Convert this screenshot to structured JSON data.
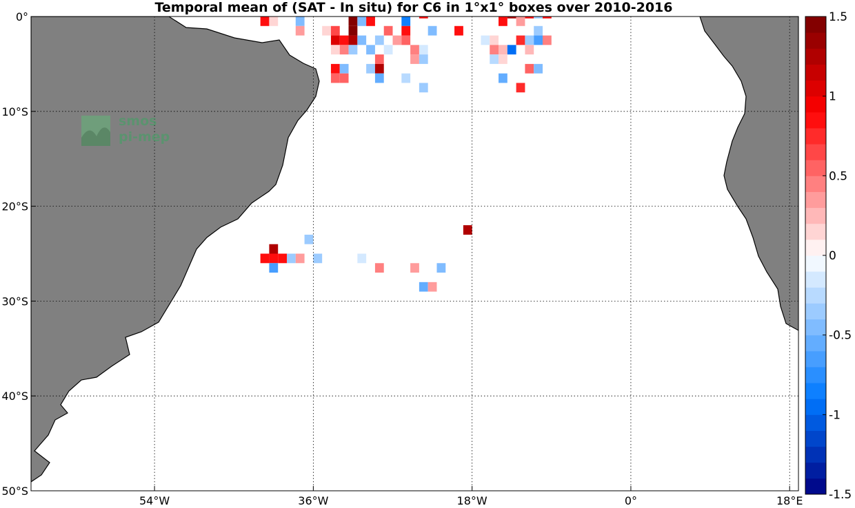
{
  "title": "Temporal mean of (SAT - In situ) for C6 in 1°x1° boxes over 2010-2016",
  "logo": {
    "line1": "smos",
    "line2": "pi-mep",
    "color": "#4f9a6a"
  },
  "colors": {
    "land": "#808080",
    "grid": "#000000",
    "background": "#ffffff"
  },
  "chart_data": {
    "type": "heatmap",
    "projection": "equirectangular",
    "lon_range": [
      -68,
      19
    ],
    "lat_range": [
      -50,
      0
    ],
    "grid": true,
    "x_ticks": [
      {
        "value": -54,
        "label": "54°W"
      },
      {
        "value": -36,
        "label": "36°W"
      },
      {
        "value": -18,
        "label": "18°W"
      },
      {
        "value": 0,
        "label": "0°"
      },
      {
        "value": 18,
        "label": "18°E"
      }
    ],
    "y_ticks": [
      {
        "value": 0,
        "label": "0°"
      },
      {
        "value": -10,
        "label": "10°S"
      },
      {
        "value": -20,
        "label": "20°S"
      },
      {
        "value": -30,
        "label": "30°S"
      },
      {
        "value": -40,
        "label": "40°S"
      },
      {
        "value": -50,
        "label": "50°S"
      }
    ],
    "colorbar": {
      "range": [
        -1.5,
        1.5
      ],
      "levels": 30,
      "ticks": [
        {
          "value": 1.5,
          "label": "1.5"
        },
        {
          "value": 1,
          "label": "1"
        },
        {
          "value": 0.5,
          "label": "0.5"
        },
        {
          "value": 0,
          "label": "0"
        },
        {
          "value": -0.5,
          "label": "-0.5"
        },
        {
          "value": -1,
          "label": "-1"
        },
        {
          "value": -1.5,
          "label": "-1.5"
        }
      ]
    },
    "cells": [
      {
        "lon": -18.5,
        "lat": -22.5,
        "value": 1.3
      },
      {
        "lon": -40.5,
        "lat": -24.5,
        "value": 1.3
      },
      {
        "lon": -41.5,
        "lat": -25.5,
        "value": 0.8
      },
      {
        "lon": -40.5,
        "lat": -25.5,
        "value": 0.9
      },
      {
        "lon": -39.5,
        "lat": -25.5,
        "value": 0.8
      },
      {
        "lon": -40.5,
        "lat": -26.5,
        "value": -0.7
      },
      {
        "lon": -36.5,
        "lat": -23.5,
        "value": -0.3
      },
      {
        "lon": -38.5,
        "lat": -25.5,
        "value": -0.4
      },
      {
        "lon": -37.5,
        "lat": -25.5,
        "value": 0.3
      },
      {
        "lon": -35.5,
        "lat": -25.5,
        "value": -0.4
      },
      {
        "lon": -30.5,
        "lat": -25.5,
        "value": -0.1
      },
      {
        "lon": -28.5,
        "lat": -26.5,
        "value": 0.45
      },
      {
        "lon": -24.5,
        "lat": -26.5,
        "value": 0.3
      },
      {
        "lon": -21.5,
        "lat": -26.5,
        "value": -0.5
      },
      {
        "lon": -23.5,
        "lat": -28.5,
        "value": -0.6
      },
      {
        "lon": -22.5,
        "lat": -28.5,
        "value": 0.3
      },
      {
        "lon": -41.5,
        "lat": -0.5,
        "value": 0.8
      },
      {
        "lon": -40.5,
        "lat": -0.5,
        "value": 0.15
      },
      {
        "lon": -37.5,
        "lat": -0.5,
        "value": -0.45
      },
      {
        "lon": -37.5,
        "lat": -1.5,
        "value": 0.3
      },
      {
        "lon": -34.5,
        "lat": -1.5,
        "value": 0.15
      },
      {
        "lon": -33.5,
        "lat": -1.5,
        "value": 0.65
      },
      {
        "lon": -31.5,
        "lat": -0.5,
        "value": 1.4
      },
      {
        "lon": -31.5,
        "lat": -1.5,
        "value": 1.4
      },
      {
        "lon": -30.5,
        "lat": -0.5,
        "value": -0.5
      },
      {
        "lon": -29.5,
        "lat": 0.3,
        "value": -0.7
      },
      {
        "lon": -29.5,
        "lat": -0.5,
        "value": 0.9
      },
      {
        "lon": -27.5,
        "lat": -1.5,
        "value": 0.55
      },
      {
        "lon": -25.5,
        "lat": -0.5,
        "value": -0.8
      },
      {
        "lon": -25.5,
        "lat": -1.5,
        "value": 0.9
      },
      {
        "lon": -23.5,
        "lat": 0.3,
        "value": 0.85
      },
      {
        "lon": -22.5,
        "lat": -1.5,
        "value": -0.45
      },
      {
        "lon": -19.5,
        "lat": -1.5,
        "value": 0.8
      },
      {
        "lon": -33.5,
        "lat": -2.5,
        "value": 1.0
      },
      {
        "lon": -32.5,
        "lat": -2.5,
        "value": 0.9
      },
      {
        "lon": -31.5,
        "lat": -2.5,
        "value": 1.2
      },
      {
        "lon": -30.5,
        "lat": -2.5,
        "value": -0.5
      },
      {
        "lon": -33.5,
        "lat": -3.5,
        "value": 0.15
      },
      {
        "lon": -32.5,
        "lat": -3.5,
        "value": 0.45
      },
      {
        "lon": -31.5,
        "lat": -3.5,
        "value": -0.3
      },
      {
        "lon": -28.5,
        "lat": -2.5,
        "value": -0.35
      },
      {
        "lon": -29.5,
        "lat": -3.5,
        "value": -0.45
      },
      {
        "lon": -26.5,
        "lat": -2.5,
        "value": 0.3
      },
      {
        "lon": -25.5,
        "lat": -2.5,
        "value": 0.55
      },
      {
        "lon": -28.5,
        "lat": -4.5,
        "value": 0.55
      },
      {
        "lon": -24.5,
        "lat": -4.5,
        "value": 0.3
      },
      {
        "lon": -23.5,
        "lat": -3.5,
        "value": -0.1
      },
      {
        "lon": -23.5,
        "lat": -4.5,
        "value": -0.3
      },
      {
        "lon": -27.5,
        "lat": -3.5,
        "value": -0.2
      },
      {
        "lon": -24.5,
        "lat": -3.5,
        "value": 0.45
      },
      {
        "lon": -33.5,
        "lat": -5.5,
        "value": 0.85
      },
      {
        "lon": -32.5,
        "lat": -5.5,
        "value": -0.5
      },
      {
        "lon": -33.5,
        "lat": -6.5,
        "value": 0.5
      },
      {
        "lon": -32.5,
        "lat": -6.5,
        "value": 0.5
      },
      {
        "lon": -29.5,
        "lat": -5.5,
        "value": -0.3
      },
      {
        "lon": -28.5,
        "lat": -5.5,
        "value": 1.3
      },
      {
        "lon": -28.5,
        "lat": -6.5,
        "value": -0.55
      },
      {
        "lon": -25.5,
        "lat": -6.5,
        "value": -0.25
      },
      {
        "lon": -23.5,
        "lat": -7.5,
        "value": -0.35
      },
      {
        "lon": -14.5,
        "lat": 0.3,
        "value": 0.3
      },
      {
        "lon": -13.5,
        "lat": 0.3,
        "value": 1.3
      },
      {
        "lon": -11.5,
        "lat": 0.3,
        "value": 0.8
      },
      {
        "lon": -10.5,
        "lat": 0.3,
        "value": -0.4
      },
      {
        "lon": -9.5,
        "lat": 0.3,
        "value": 0.9
      },
      {
        "lon": -14.5,
        "lat": -0.5,
        "value": 0.9
      },
      {
        "lon": -12.5,
        "lat": -0.5,
        "value": 0.3
      },
      {
        "lon": -10.5,
        "lat": -1.5,
        "value": -0.3
      },
      {
        "lon": -16.5,
        "lat": -2.5,
        "value": -0.15
      },
      {
        "lon": -15.5,
        "lat": -2.5,
        "value": 0.15
      },
      {
        "lon": -12.5,
        "lat": -2.5,
        "value": 0.75
      },
      {
        "lon": -11.5,
        "lat": -2.5,
        "value": -0.4
      },
      {
        "lon": -10.5,
        "lat": -2.5,
        "value": -0.7
      },
      {
        "lon": -9.5,
        "lat": -2.5,
        "value": 0.45
      },
      {
        "lon": -15.5,
        "lat": -3.5,
        "value": 0.45
      },
      {
        "lon": -14.5,
        "lat": -3.5,
        "value": 0.2
      },
      {
        "lon": -13.5,
        "lat": -3.5,
        "value": -0.9
      },
      {
        "lon": -11.5,
        "lat": -3.5,
        "value": 0.2
      },
      {
        "lon": -15.5,
        "lat": -4.5,
        "value": -0.25
      },
      {
        "lon": -14.5,
        "lat": -4.5,
        "value": 0.15
      },
      {
        "lon": -11.5,
        "lat": -5.5,
        "value": 0.5
      },
      {
        "lon": -10.5,
        "lat": -5.5,
        "value": -0.5
      },
      {
        "lon": -14.5,
        "lat": -6.5,
        "value": -0.6
      },
      {
        "lon": -12.5,
        "lat": -7.5,
        "value": 0.75
      }
    ]
  }
}
